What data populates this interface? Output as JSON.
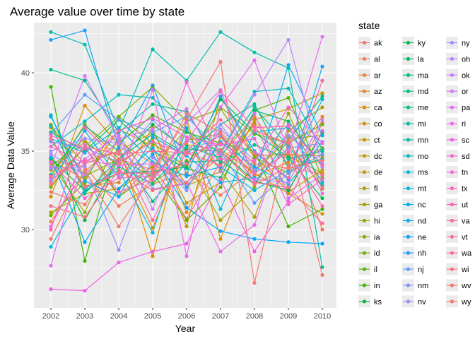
{
  "chart_data": {
    "type": "line",
    "title": "Average value over time by state",
    "xlabel": "Year",
    "ylabel": "Average Data Value",
    "x": [
      "2002",
      "2003",
      "2004",
      "2005",
      "2006",
      "2007",
      "2008",
      "2009",
      "2010"
    ],
    "ylim": [
      25.0,
      43.2
    ],
    "yticks": [
      30,
      35,
      40
    ],
    "grid": true,
    "legend_title": "state",
    "legend_position": "right",
    "series": [
      {
        "name": "ak",
        "color": "#F8766D",
        "values": [
          32.8,
          35.3,
          32.1,
          34.1,
          30.7,
          34.3,
          36.7,
          32.4,
          36.8
        ]
      },
      {
        "name": "al",
        "color": "#F47D58",
        "values": [
          34.4,
          34.0,
          31.5,
          32.9,
          33.6,
          32.2,
          33.8,
          36.0,
          30.0
        ]
      },
      {
        "name": "ar",
        "color": "#EF8342",
        "values": [
          30.5,
          33.7,
          35.6,
          34.2,
          32.8,
          34.7,
          37.2,
          34.1,
          35.2
        ]
      },
      {
        "name": "az",
        "color": "#E88526",
        "values": [
          35.7,
          32.8,
          33.0,
          36.5,
          31.1,
          35.9,
          33.4,
          34.3,
          37.2
        ]
      },
      {
        "name": "ca",
        "color": "#E18A00",
        "values": [
          32.1,
          37.9,
          35.4,
          28.3,
          37.1,
          29.4,
          34.7,
          34.8,
          34.7
        ]
      },
      {
        "name": "co",
        "color": "#D89000",
        "values": [
          33.3,
          36.7,
          34.5,
          30.1,
          35.4,
          35.1,
          33.6,
          32.3,
          31.0
        ]
      },
      {
        "name": "ct",
        "color": "#CF9400",
        "values": [
          34.4,
          33.2,
          36.4,
          35.3,
          30.2,
          38.5,
          34.7,
          32.4,
          33.8
        ]
      },
      {
        "name": "dc",
        "color": "#C59900",
        "values": [
          33.8,
          35.6,
          34.1,
          35.8,
          31.7,
          33.0,
          37.0,
          37.7,
          38.7
        ]
      },
      {
        "name": "de",
        "color": "#BE9C00",
        "values": [
          36.5,
          34.2,
          35.0,
          36.2,
          32.8,
          33.7,
          36.8,
          34.7,
          33.6
        ]
      },
      {
        "name": "fl",
        "color": "#B09F00",
        "values": [
          31.1,
          32.3,
          32.6,
          34.0,
          36.4,
          33.8,
          30.8,
          36.3,
          37.8
        ]
      },
      {
        "name": "ga",
        "color": "#A3A500",
        "values": [
          34.2,
          31.1,
          36.0,
          33.0,
          34.4,
          30.6,
          32.7,
          37.4,
          32.6
        ]
      },
      {
        "name": "hi",
        "color": "#94A900",
        "values": [
          36.7,
          33.4,
          34.5,
          33.4,
          35.7,
          36.1,
          33.7,
          35.8,
          36.0
        ]
      },
      {
        "name": "ia",
        "color": "#85AD00",
        "values": [
          32.7,
          35.3,
          37.2,
          39.1,
          36.9,
          37.7,
          34.6,
          33.6,
          35.2
        ]
      },
      {
        "name": "id",
        "color": "#72B000",
        "values": [
          30.9,
          33.0,
          37.2,
          35.5,
          34.0,
          37.8,
          36.1,
          35.5,
          36.7
        ]
      },
      {
        "name": "il",
        "color": "#5EB300",
        "values": [
          34.0,
          35.8,
          32.1,
          33.6,
          30.6,
          32.7,
          37.6,
          38.4,
          33.3
        ]
      },
      {
        "name": "in",
        "color": "#3DB600",
        "values": [
          39.1,
          28.0,
          35.5,
          37.3,
          36.2,
          35.5,
          35.0,
          30.2,
          31.3
        ]
      },
      {
        "name": "ks",
        "color": "#00BA38",
        "values": [
          34.8,
          30.6,
          34.5,
          36.7,
          35.1,
          35.0,
          33.1,
          32.5,
          36.2
        ]
      },
      {
        "name": "ky",
        "color": "#00BB4E",
        "values": [
          34.5,
          32.5,
          33.6,
          33.7,
          34.0,
          38.3,
          36.2,
          34.6,
          32.0
        ]
      },
      {
        "name": "la",
        "color": "#00BC61",
        "values": [
          36.2,
          35.0,
          37.0,
          35.0,
          33.9,
          33.3,
          37.6,
          36.9,
          34.0
        ]
      },
      {
        "name": "ma",
        "color": "#00BE72",
        "values": [
          33.5,
          36.6,
          35.0,
          31.8,
          34.3,
          34.4,
          32.9,
          35.7,
          38.5
        ]
      },
      {
        "name": "md",
        "color": "#00BF82",
        "values": [
          37.3,
          32.3,
          34.5,
          36.1,
          34.8,
          36.7,
          38.0,
          33.9,
          34.5
        ]
      },
      {
        "name": "me",
        "color": "#00C08F",
        "values": [
          40.2,
          39.5,
          36.2,
          38.0,
          37.5,
          34.2,
          35.4,
          34.5,
          35.0
        ]
      },
      {
        "name": "mi",
        "color": "#00C19B",
        "values": [
          36.6,
          32.4,
          34.0,
          32.9,
          35.3,
          34.6,
          37.8,
          35.3,
          32.8
        ]
      },
      {
        "name": "mn",
        "color": "#00C0AB",
        "values": [
          42.6,
          41.8,
          36.3,
          41.5,
          39.5,
          42.6,
          41.3,
          40.3,
          27.6
        ]
      },
      {
        "name": "mo",
        "color": "#00BEC1",
        "values": [
          35.3,
          36.9,
          38.6,
          38.4,
          36.3,
          34.9,
          38.8,
          39.0,
          35.1
        ]
      },
      {
        "name": "ms",
        "color": "#00BCD8",
        "values": [
          28.9,
          32.6,
          33.8,
          29.8,
          36.5,
          31.3,
          36.2,
          36.5,
          33.0
        ]
      },
      {
        "name": "mt",
        "color": "#00B8E5",
        "values": [
          35.8,
          34.9,
          36.5,
          34.3,
          33.4,
          34.0,
          32.5,
          33.8,
          38.3
        ]
      },
      {
        "name": "nc",
        "color": "#00B4EF",
        "values": [
          33.1,
          36.3,
          33.3,
          35.2,
          32.7,
          35.6,
          34.0,
          32.9,
          35.6
        ]
      },
      {
        "name": "nd",
        "color": "#00ADFA",
        "values": [
          37.2,
          33.1,
          32.1,
          35.9,
          34.7,
          33.0,
          33.3,
          40.5,
          36.0
        ]
      },
      {
        "name": "ne",
        "color": "#00A6FF",
        "values": [
          34.6,
          29.2,
          32.6,
          34.8,
          31.4,
          29.9,
          29.4,
          29.2,
          29.1
        ]
      },
      {
        "name": "nh",
        "color": "#16A1FF",
        "values": [
          42.1,
          42.7,
          35.2,
          39.2,
          33.5,
          38.5,
          35.0,
          33.2,
          40.4
        ]
      },
      {
        "name": "nj",
        "color": "#619CFF",
        "values": [
          36.1,
          38.6,
          37.0,
          36.2,
          37.2,
          35.0,
          31.7,
          33.6,
          34.8
        ]
      },
      {
        "name": "nm",
        "color": "#8094FF",
        "values": [
          35.6,
          35.2,
          34.3,
          37.0,
          34.9,
          36.0,
          33.1,
          35.2,
          35.5
        ]
      },
      {
        "name": "nv",
        "color": "#9590FF",
        "values": [
          33.9,
          34.0,
          28.7,
          34.6,
          32.5,
          36.7,
          33.8,
          36.0,
          34.2
        ]
      },
      {
        "name": "ny",
        "color": "#A58AFF",
        "values": [
          35.0,
          35.8,
          35.5,
          32.6,
          32.9,
          36.4,
          34.4,
          36.7,
          35.6
        ]
      },
      {
        "name": "oh",
        "color": "#B983FF",
        "values": [
          34.8,
          33.5,
          35.7,
          33.3,
          35.7,
          34.8,
          38.6,
          42.1,
          34.0
        ]
      },
      {
        "name": "ok",
        "color": "#C77CFF",
        "values": [
          33.2,
          34.5,
          36.0,
          31.3,
          36.8,
          38.9,
          33.2,
          33.0,
          37.0
        ]
      },
      {
        "name": "or",
        "color": "#D476FA",
        "values": [
          34.0,
          39.8,
          35.8,
          36.4,
          37.7,
          33.7,
          37.4,
          32.0,
          33.5
        ]
      },
      {
        "name": "pa",
        "color": "#E76BF3",
        "values": [
          27.7,
          35.4,
          33.4,
          38.9,
          28.3,
          37.8,
          40.8,
          35.0,
          42.3
        ]
      },
      {
        "name": "ri",
        "color": "#EC69EF",
        "values": [
          30.2,
          34.4,
          34.1,
          34.2,
          33.0,
          28.6,
          30.3,
          36.6,
          32.3
        ]
      },
      {
        "name": "sc",
        "color": "#F25FE4",
        "values": [
          26.2,
          26.1,
          27.9,
          28.6,
          29.1,
          33.2,
          28.6,
          31.8,
          36.3
        ]
      },
      {
        "name": "sd",
        "color": "#F763D0",
        "values": [
          35.3,
          34.2,
          36.3,
          37.1,
          35.9,
          35.4,
          35.8,
          31.6,
          33.2
        ]
      },
      {
        "name": "tn",
        "color": "#FB61D7",
        "values": [
          34.3,
          32.0,
          33.3,
          33.4,
          39.4,
          34.5,
          34.4,
          37.8,
          35.5
        ]
      },
      {
        "name": "tx",
        "color": "#FF62BC",
        "values": [
          36.0,
          35.2,
          32.4,
          33.2,
          35.6,
          38.8,
          36.5,
          36.6,
          34.1
        ]
      },
      {
        "name": "ut",
        "color": "#FF64B0",
        "values": [
          30.0,
          36.5,
          34.3,
          35.6,
          34.8,
          35.5,
          33.6,
          34.9,
          31.5
        ]
      },
      {
        "name": "va",
        "color": "#FF67A4",
        "values": [
          33.4,
          34.4,
          35.0,
          30.6,
          35.0,
          37.0,
          34.9,
          33.3,
          39.5
        ]
      },
      {
        "name": "vt",
        "color": "#FF6A98",
        "values": [
          35.8,
          32.7,
          33.6,
          33.6,
          34.2,
          36.1,
          33.0,
          32.7,
          30.4
        ]
      },
      {
        "name": "wa",
        "color": "#FF6C91",
        "values": [
          33.0,
          35.3,
          34.8,
          35.0,
          34.9,
          34.1,
          36.3,
          35.5,
          32.7
        ]
      },
      {
        "name": "wi",
        "color": "#FB7081",
        "values": [
          31.5,
          30.8,
          33.8,
          32.5,
          33.0,
          35.0,
          32.9,
          34.0,
          33.5
        ]
      },
      {
        "name": "wv",
        "color": "#F87670",
        "values": [
          32.4,
          31.6,
          34.5,
          33.8,
          37.0,
          40.7,
          26.6,
          35.7,
          27.1
        ]
      },
      {
        "name": "wy",
        "color": "#F47A6C",
        "values": [
          29.4,
          33.8,
          30.2,
          33.4,
          37.4,
          36.2,
          34.2,
          33.9,
          34.4
        ]
      }
    ]
  }
}
